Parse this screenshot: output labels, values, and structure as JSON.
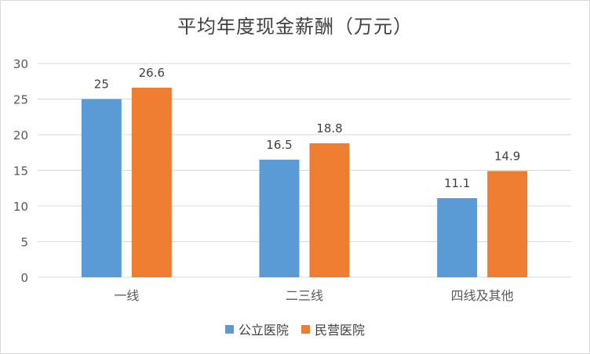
{
  "chart_data": {
    "type": "bar",
    "title": "平均年度现金薪酬（万元）",
    "categories": [
      "一线",
      "二三线",
      "四线及其他"
    ],
    "series": [
      {
        "name": "公立医院",
        "values": [
          25,
          16.5,
          11.1
        ],
        "color": "#5b9bd5"
      },
      {
        "name": "民营医院",
        "values": [
          26.6,
          18.8,
          14.9
        ],
        "color": "#ed7d31"
      }
    ],
    "y_ticks": [
      "0",
      "5",
      "10",
      "15",
      "20",
      "25",
      "30"
    ],
    "ylim": [
      0,
      30
    ],
    "grid": true,
    "legend_position": "bottom"
  }
}
